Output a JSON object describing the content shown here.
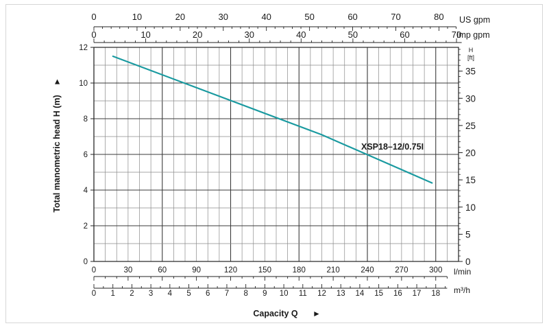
{
  "chart_data": {
    "type": "line",
    "xlabel": "Capacity Q",
    "ylabel": "Total manometric head H (m)",
    "ylabel_right": "H",
    "ylabel_right_unit": "[ft]",
    "xlim": [
      0,
      320
    ],
    "ylim": [
      0,
      12
    ],
    "grid": true,
    "x_units": {
      "lmin": "l/min",
      "m3h": "m³/h",
      "usgpm": "US gpm",
      "impgpm": "Imp gpm"
    },
    "x_ticks_lmin": [
      "0",
      "30",
      "60",
      "90",
      "120",
      "150",
      "180",
      "210",
      "240",
      "270",
      "300"
    ],
    "x_ticks_m3h": [
      "0",
      "1",
      "2",
      "3",
      "4",
      "5",
      "6",
      "7",
      "8",
      "9",
      "10",
      "11",
      "12",
      "13",
      "14",
      "15",
      "16",
      "17",
      "18"
    ],
    "x_ticks_usgpm": [
      "0",
      "10",
      "20",
      "30",
      "40",
      "50",
      "60",
      "70",
      "80"
    ],
    "x_ticks_impgpm": [
      "0",
      "10",
      "20",
      "30",
      "40",
      "50",
      "60",
      "70"
    ],
    "y_ticks_m": [
      "0",
      "2",
      "4",
      "6",
      "8",
      "10",
      "12"
    ],
    "y_ticks_ft": [
      "0",
      "5",
      "10",
      "15",
      "20",
      "25",
      "30",
      "35"
    ],
    "series": [
      {
        "name": "XSP18–12/0.75I",
        "x": [
          16.7,
          100,
          200,
          296.7
        ],
        "y": [
          11.5,
          9.5,
          7.1,
          4.4
        ]
      }
    ],
    "line_color": "#1a9aa0",
    "arrow_glyph": "►"
  }
}
